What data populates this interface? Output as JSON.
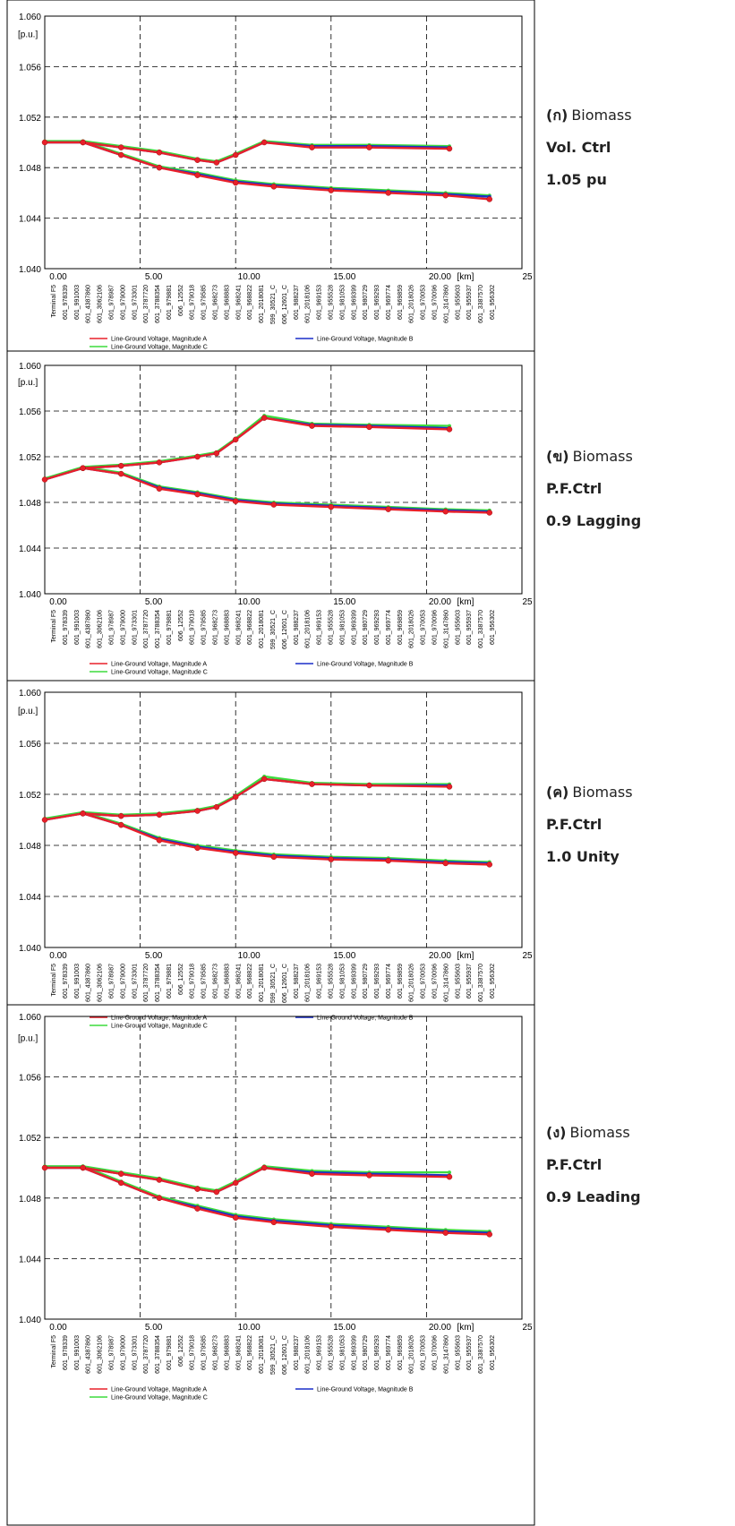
{
  "node_labels": [
    "Terminal F5",
    "601_978339",
    "601_991003",
    "601_4387860",
    "601_3062106",
    "601_978987",
    "601_979000",
    "601_973301",
    "601_3787720",
    "601_3788354",
    "601_979881",
    "606_12552",
    "601_979018",
    "601_979585",
    "601_968273",
    "601_968883",
    "601_968241",
    "601_968822",
    "601_2018081",
    "599_30521_C",
    "606_12601_C",
    "601_988237",
    "601_2018106",
    "601_969153",
    "601_955528",
    "601_981053",
    "601_969399",
    "601_980729",
    "601_969293",
    "601_969774",
    "601_969859",
    "601_2018026",
    "601_970053",
    "601_970096",
    "601_3147860",
    "601_955603",
    "601_955937",
    "601_3387570",
    "601_956302"
  ],
  "chart_data": [
    {
      "type": "line",
      "y_label": "[p.u.]",
      "x_label": "[km]",
      "caption": {
        "label": "(ก)",
        "lines": [
          "Biomass",
          "Vol. Ctrl",
          "1.05 pu"
        ]
      },
      "xlim": [
        0,
        25
      ],
      "xticks": [
        {
          "value": 0,
          "label": "0.00"
        },
        {
          "value": 5,
          "label": "5.00"
        },
        {
          "value": 10,
          "label": "10.00"
        },
        {
          "value": 15,
          "label": "15.00"
        },
        {
          "value": 20,
          "label": "20.00"
        },
        25
      ],
      "ylim": [
        1.04,
        1.06
      ],
      "yticks": [
        {
          "value": 1.04,
          "label": "1.040"
        },
        {
          "value": 1.044,
          "label": "1.044"
        },
        {
          "value": 1.048,
          "label": "1.048"
        },
        {
          "value": 1.052,
          "label": "1.052"
        },
        {
          "value": 1.056,
          "label": "1.056"
        },
        {
          "value": 1.06,
          "label": "1.060"
        }
      ],
      "grid": true,
      "x": [
        0,
        2,
        4,
        6,
        8,
        9,
        10,
        11.5,
        14,
        17,
        21.2,
        2,
        4,
        6,
        8,
        10,
        12,
        15,
        18,
        21,
        23.3
      ],
      "series": [
        {
          "name": "Line-Ground Voltage, Magnitude A",
          "color": "#e8202a",
          "values": [
            1.05,
            1.05,
            1.0496,
            1.0492,
            1.0486,
            1.0484,
            1.049,
            1.05,
            1.0496,
            1.0496,
            1.0495,
            1.05,
            1.049,
            1.048,
            1.0474,
            1.0468,
            1.0465,
            1.0462,
            1.046,
            1.0458,
            1.0455
          ]
        },
        {
          "name": "Line-Ground Voltage, Magnitude B",
          "color": "#1a2fc8",
          "values": [
            1.05,
            1.05,
            1.0496,
            1.0492,
            1.0486,
            1.0484,
            1.049,
            1.05,
            1.0497,
            1.0497,
            1.0496,
            1.05,
            1.049,
            1.048,
            1.0475,
            1.0469,
            1.0466,
            1.0463,
            1.0461,
            1.0459,
            1.0457
          ]
        },
        {
          "name": "Line-Ground Voltage, Magnitude C",
          "color": "#3ddc3d",
          "values": [
            1.0501,
            1.0501,
            1.0497,
            1.0493,
            1.0487,
            1.0485,
            1.0491,
            1.0501,
            1.0498,
            1.0498,
            1.0497,
            1.0501,
            1.0491,
            1.0481,
            1.0476,
            1.047,
            1.0467,
            1.0464,
            1.0462,
            1.046,
            1.0458
          ]
        }
      ]
    },
    {
      "type": "line",
      "y_label": "[p.u.]",
      "x_label": "[km]",
      "caption": {
        "label": "(ข)",
        "lines": [
          "Biomass",
          "P.F.Ctrl",
          "0.9 Lagging"
        ]
      },
      "xlim": [
        0,
        25
      ],
      "xticks": [
        {
          "value": 0,
          "label": "0.00"
        },
        {
          "value": 5,
          "label": "5.00"
        },
        {
          "value": 10,
          "label": "10.00"
        },
        {
          "value": 15,
          "label": "15.00"
        },
        {
          "value": 20,
          "label": "20.00"
        },
        25
      ],
      "ylim": [
        1.04,
        1.06
      ],
      "yticks": [
        {
          "value": 1.04,
          "label": "1.040"
        },
        {
          "value": 1.044,
          "label": "1.044"
        },
        {
          "value": 1.048,
          "label": "1.048"
        },
        {
          "value": 1.052,
          "label": "1.052"
        },
        {
          "value": 1.056,
          "label": "1.056"
        },
        {
          "value": 1.06,
          "label": "1.060"
        }
      ],
      "grid": true,
      "x": [
        0,
        2,
        4,
        6,
        8,
        9,
        10,
        11.5,
        14,
        17,
        21.2,
        2,
        4,
        6,
        8,
        10,
        12,
        15,
        18,
        21,
        23.3
      ],
      "series": [
        {
          "name": "Line-Ground Voltage, Magnitude A",
          "color": "#e8202a",
          "values": [
            1.05,
            1.051,
            1.0512,
            1.0515,
            1.052,
            1.0523,
            1.0535,
            1.0554,
            1.0547,
            1.0546,
            1.0544,
            1.051,
            1.0505,
            1.0492,
            1.0487,
            1.0481,
            1.0478,
            1.0476,
            1.0474,
            1.0472,
            1.0471
          ]
        },
        {
          "name": "Line-Ground Voltage, Magnitude B",
          "color": "#1a2fc8",
          "values": [
            1.05,
            1.051,
            1.0512,
            1.0515,
            1.052,
            1.0523,
            1.0535,
            1.0554,
            1.0548,
            1.0547,
            1.0545,
            1.051,
            1.0505,
            1.0493,
            1.0488,
            1.0482,
            1.0479,
            1.0477,
            1.0475,
            1.0473,
            1.0472
          ]
        },
        {
          "name": "Line-Ground Voltage, Magnitude C",
          "color": "#3ddc3d",
          "values": [
            1.0501,
            1.0511,
            1.0513,
            1.0516,
            1.0521,
            1.0524,
            1.0536,
            1.0556,
            1.0549,
            1.0548,
            1.0547,
            1.0511,
            1.0506,
            1.0494,
            1.0489,
            1.0483,
            1.048,
            1.0478,
            1.0476,
            1.0474,
            1.0473
          ]
        }
      ]
    },
    {
      "type": "line",
      "y_label": "[p.u.]",
      "x_label": "[km]",
      "caption": {
        "label": "(ค)",
        "lines": [
          "Biomass",
          "P.F.Ctrl",
          "1.0 Unity"
        ]
      },
      "xlim": [
        0,
        25
      ],
      "xticks": [
        {
          "value": 0,
          "label": "0.00"
        },
        {
          "value": 5,
          "label": "5.00"
        },
        {
          "value": 10,
          "label": "10.00"
        },
        {
          "value": 15,
          "label": "15.00"
        },
        {
          "value": 20,
          "label": "20.00"
        },
        25
      ],
      "ylim": [
        1.04,
        1.06
      ],
      "yticks": [
        {
          "value": 1.04,
          "label": "1.040"
        },
        {
          "value": 1.044,
          "label": "1.044"
        },
        {
          "value": 1.048,
          "label": "1.048"
        },
        {
          "value": 1.052,
          "label": "1.052"
        },
        {
          "value": 1.056,
          "label": "1.056"
        },
        {
          "value": 1.06,
          "label": "1.060"
        }
      ],
      "grid": true,
      "x": [
        0,
        2,
        4,
        6,
        8,
        9,
        10,
        11.5,
        14,
        17,
        21.2,
        2,
        4,
        6,
        8,
        10,
        12,
        15,
        18,
        21,
        23.3
      ],
      "series": [
        {
          "name": "Line-Ground Voltage, Magnitude A",
          "color": "#e8202a",
          "values": [
            1.05,
            1.0505,
            1.0503,
            1.0504,
            1.0507,
            1.051,
            1.0518,
            1.0532,
            1.0528,
            1.0527,
            1.0526,
            1.0505,
            1.0496,
            1.0484,
            1.0478,
            1.0474,
            1.0471,
            1.0469,
            1.0468,
            1.0466,
            1.0465
          ]
        },
        {
          "name": "Line-Ground Voltage, Magnitude B",
          "color": "#1a2fc8",
          "values": [
            1.05,
            1.0505,
            1.0503,
            1.0504,
            1.0507,
            1.051,
            1.0518,
            1.0532,
            1.0528,
            1.0527,
            1.0527,
            1.0505,
            1.0496,
            1.0485,
            1.0479,
            1.0475,
            1.0472,
            1.047,
            1.0469,
            1.0467,
            1.0466
          ]
        },
        {
          "name": "Line-Ground Voltage, Magnitude C",
          "color": "#3ddc3d",
          "values": [
            1.0501,
            1.0506,
            1.0504,
            1.0505,
            1.0508,
            1.0511,
            1.0519,
            1.0534,
            1.0529,
            1.0528,
            1.0528,
            1.0506,
            1.0497,
            1.0486,
            1.048,
            1.0476,
            1.0473,
            1.0471,
            1.047,
            1.0468,
            1.0467
          ]
        }
      ]
    },
    {
      "type": "line",
      "y_label": "[p.u.]",
      "x_label": "[km]",
      "caption": {
        "label": "(ง)",
        "lines": [
          "Biomass",
          "P.F.Ctrl",
          "0.9 Leading"
        ]
      },
      "xlim": [
        0,
        25
      ],
      "xticks": [
        {
          "value": 0,
          "label": "0.00"
        },
        {
          "value": 5,
          "label": "5.00"
        },
        {
          "value": 10,
          "label": "10.00"
        },
        {
          "value": 15,
          "label": "15.00"
        },
        {
          "value": 20,
          "label": "20.00"
        },
        25
      ],
      "ylim": [
        1.04,
        1.06
      ],
      "yticks": [
        {
          "value": 1.04,
          "label": "1.040"
        },
        {
          "value": 1.044,
          "label": "1.044"
        },
        {
          "value": 1.048,
          "label": "1.048"
        },
        {
          "value": 1.052,
          "label": "1.052"
        },
        {
          "value": 1.056,
          "label": "1.056"
        },
        {
          "value": 1.06,
          "label": "1.060"
        }
      ],
      "grid": true,
      "x": [
        0,
        2,
        4,
        6,
        8,
        9,
        10,
        11.5,
        14,
        17,
        21.2,
        2,
        4,
        6,
        8,
        10,
        12,
        15,
        18,
        21,
        23.3
      ],
      "series": [
        {
          "name": "Line-Ground Voltage, Magnitude A",
          "color": "#e8202a",
          "values": [
            1.05,
            1.05,
            1.0496,
            1.0492,
            1.0486,
            1.0484,
            1.049,
            1.05,
            1.0496,
            1.0495,
            1.0494,
            1.05,
            1.049,
            1.048,
            1.0473,
            1.0467,
            1.0464,
            1.0461,
            1.0459,
            1.0457,
            1.0456
          ]
        },
        {
          "name": "Line-Ground Voltage, Magnitude B",
          "color": "#1a2fc8",
          "values": [
            1.05,
            1.05,
            1.0496,
            1.0492,
            1.0486,
            1.0484,
            1.049,
            1.05,
            1.0497,
            1.0496,
            1.0495,
            1.05,
            1.049,
            1.048,
            1.0474,
            1.0468,
            1.0465,
            1.0462,
            1.046,
            1.0458,
            1.0457
          ]
        },
        {
          "name": "Line-Ground Voltage, Magnitude C",
          "color": "#3ddc3d",
          "values": [
            1.0501,
            1.0501,
            1.0497,
            1.0493,
            1.0487,
            1.0485,
            1.0491,
            1.0501,
            1.0498,
            1.0497,
            1.0497,
            1.0501,
            1.0491,
            1.0481,
            1.0475,
            1.0469,
            1.0466,
            1.0463,
            1.0461,
            1.0459,
            1.0458
          ]
        }
      ]
    }
  ]
}
